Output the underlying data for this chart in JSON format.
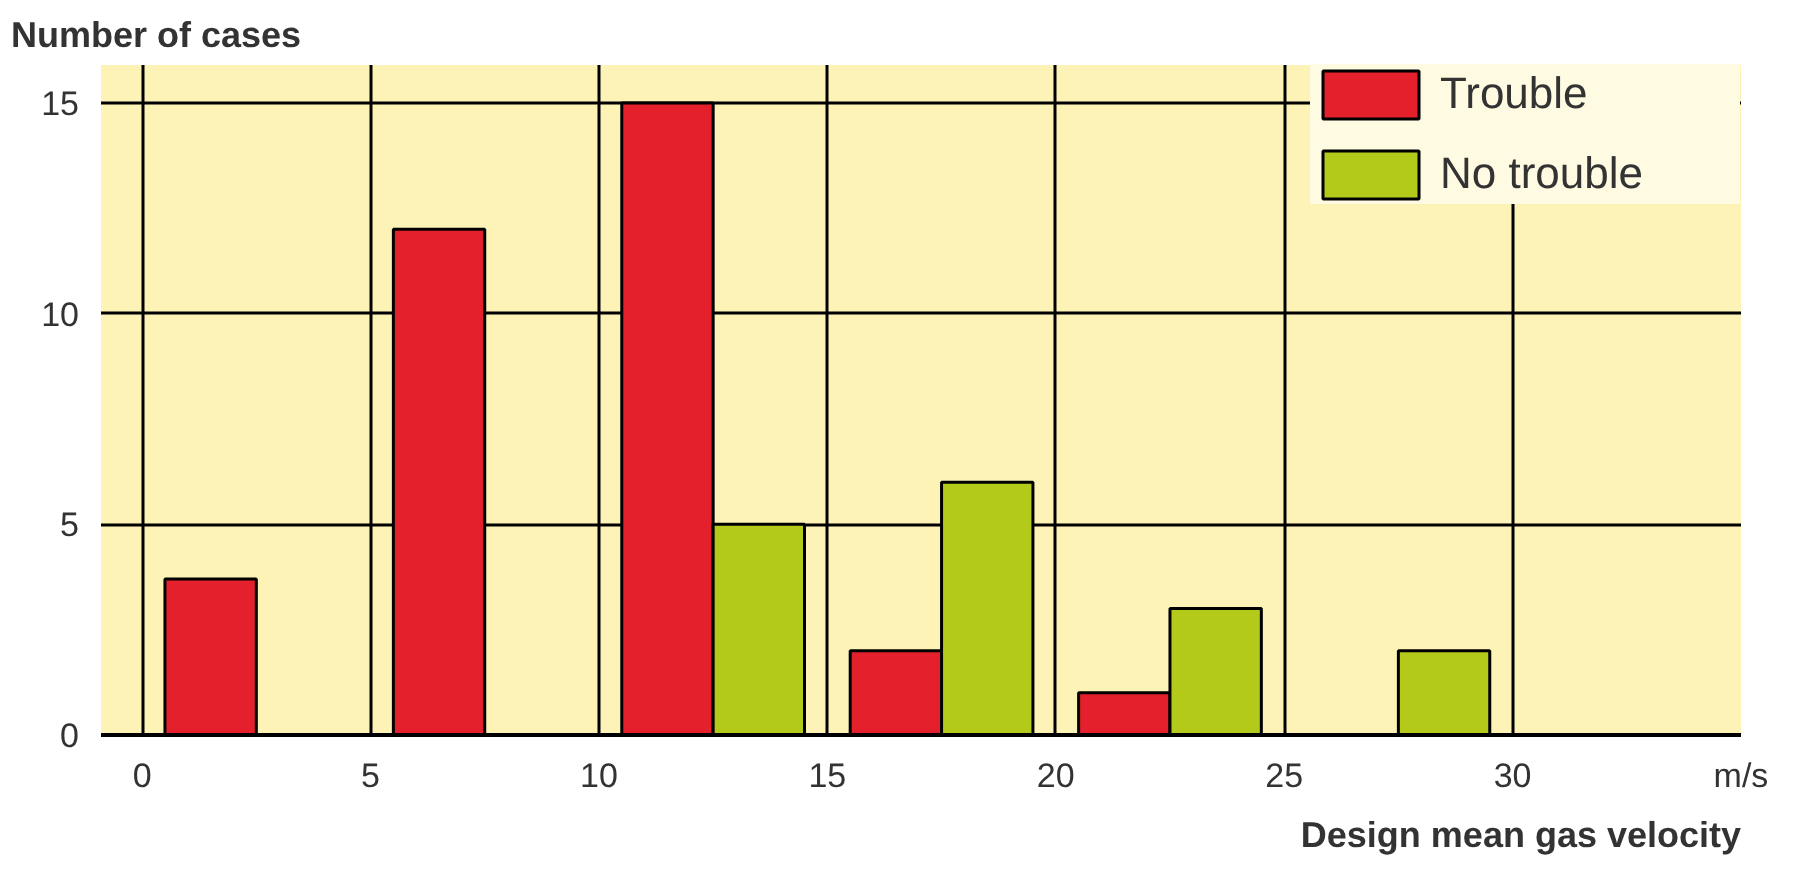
{
  "chart_data": {
    "type": "bar",
    "ylabel": "Number of cases",
    "xlabel": "Design mean gas velocity",
    "xlim": [
      -0.9,
      35
    ],
    "ylim": [
      0,
      15.9
    ],
    "xticks": [
      0,
      5,
      10,
      15,
      20,
      25,
      30,
      {
        "value": 35,
        "label": "m/s"
      }
    ],
    "yticks": [
      0,
      5,
      10,
      15
    ],
    "grid": true,
    "legend": "top right",
    "series": [
      {
        "name": "Trouble",
        "color": "#e3202b",
        "x": [
          1.5,
          6.5,
          11.5,
          16.5,
          21.5
        ],
        "values": [
          3.7,
          12,
          15,
          2,
          1
        ]
      },
      {
        "name": "No trouble",
        "color": "#b4ca1b",
        "x": [
          13.5,
          18.5,
          23.5,
          28.5
        ],
        "values": [
          5,
          6,
          3,
          2
        ]
      }
    ]
  }
}
